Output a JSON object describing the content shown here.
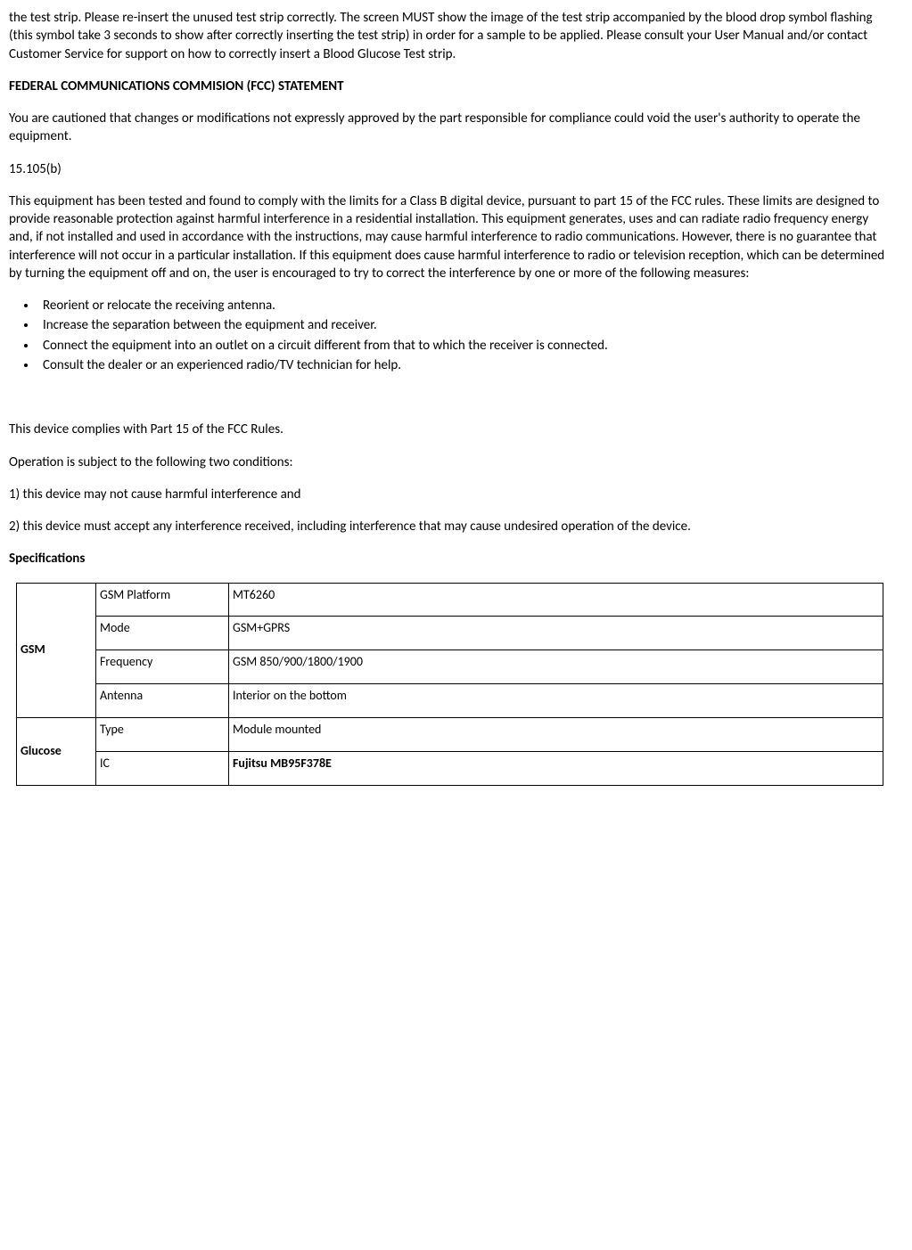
{
  "intro_paragraph": "the test strip. Please re-insert the unused test strip correctly. The screen MUST show the image of the test strip accompanied by the blood drop symbol flashing (this symbol take 3 seconds to show after correctly inserting the test strip) in order for a sample to be applied. Please consult your User Manual and/or contact Customer Service for support on how to correctly insert a Blood Glucose Test strip.",
  "fcc_heading": "FEDERAL COMMUNICATIONS COMMISION (FCC) STATEMENT",
  "fcc_p1": "You are cautioned that changes or modifications not expressly approved by the part responsible for compliance could void the user's authority to operate the equipment.",
  "fcc_section": "15.105(b)",
  "fcc_p2": "This equipment has been tested and found to comply with the limits for a Class B digital device, pursuant to part 15 of the FCC rules. These limits are designed to provide reasonable protection against harmful interference in a residential installation. This equipment generates, uses and can radiate radio frequency energy and, if not installed and used in accordance with the instructions, may cause harmful interference to radio communications. However, there is no guarantee that interference will not occur in a particular installation. If this equipment does cause harmful interference to radio or television reception, which can be determined by turning the equipment off and on, the user is encouraged to try to correct the interference by one or more of the following measures:",
  "bullets": [
    "Reorient or relocate the receiving antenna.",
    "Increase the separation between the equipment and receiver.",
    "Connect the equipment into an outlet on a circuit different from that to which the receiver is connected.",
    "Consult the dealer or an experienced radio/TV technician for help."
  ],
  "complies": "This device complies with Part 15 of the FCC Rules.",
  "operation": "Operation is subject to the following two conditions:",
  "cond1": "1) this device may not cause harmful interference and",
  "cond2": "2) this device must accept any interference received, including interference that may cause undesired operation of the device.",
  "specs_heading": "Specifications",
  "table": {
    "groups": [
      {
        "name": "GSM",
        "rows": [
          {
            "label": "GSM Platform",
            "value": "MT6260",
            "bold": false
          },
          {
            "label": "Mode",
            "value": "GSM+GPRS",
            "bold": false
          },
          {
            "label": "Frequency",
            "value": "GSM 850/900/1800/1900",
            "bold": false
          },
          {
            "label": "Antenna",
            "value": "Interior on the bottom",
            "bold": false
          }
        ]
      },
      {
        "name": "Glucose",
        "rows": [
          {
            "label": "Type",
            "value": "Module mounted",
            "bold": false
          },
          {
            "label": "IC",
            "value": "Fujitsu MB95F378E",
            "bold": true
          }
        ]
      }
    ]
  }
}
